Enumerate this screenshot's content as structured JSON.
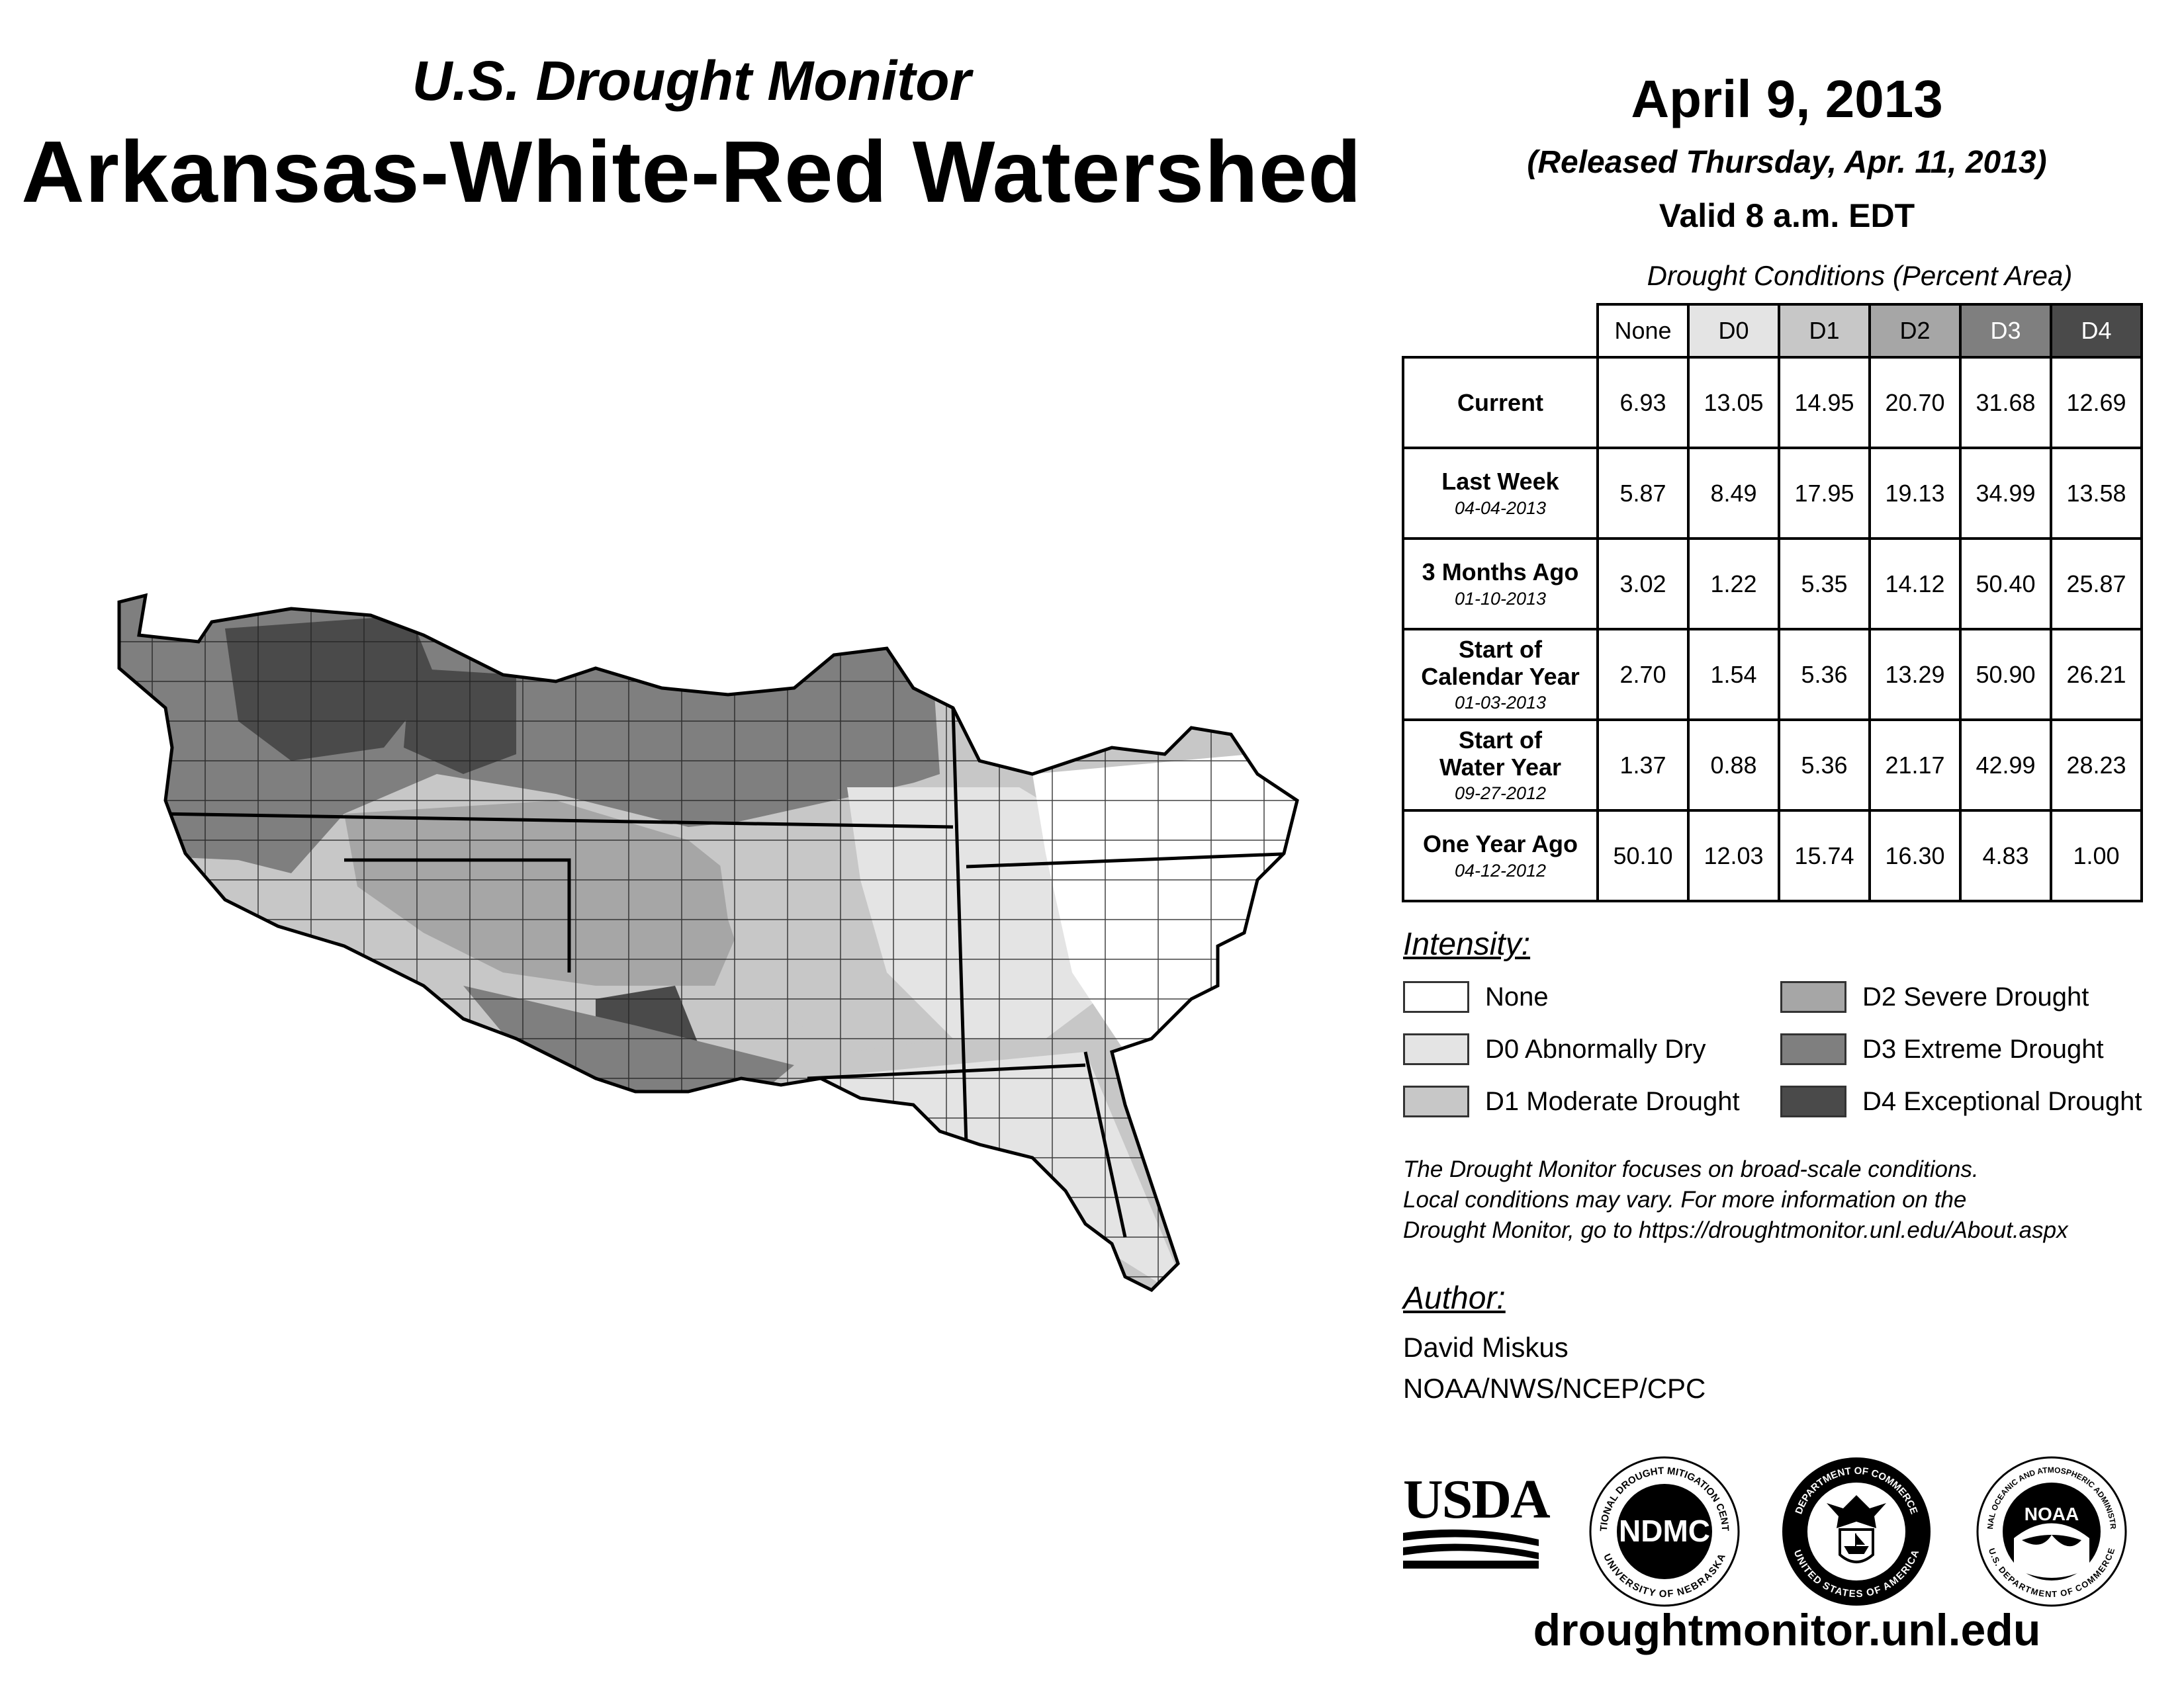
{
  "header": {
    "subtitle": "U.S. Drought Monitor",
    "title": "Arkansas-White-Red Watershed"
  },
  "date_block": {
    "date": "April 9, 2013",
    "released": "(Released Thursday, Apr. 11, 2013)",
    "valid": "Valid 8 a.m. EDT"
  },
  "table": {
    "caption": "Drought Conditions (Percent Area)",
    "columns": [
      "None",
      "D0",
      "D1",
      "D2",
      "D3",
      "D4"
    ],
    "rows": [
      {
        "label": "Current",
        "date": "",
        "values": [
          "6.93",
          "13.05",
          "14.95",
          "20.70",
          "31.68",
          "12.69"
        ]
      },
      {
        "label": "Last Week",
        "date": "04-04-2013",
        "values": [
          "5.87",
          "8.49",
          "17.95",
          "19.13",
          "34.99",
          "13.58"
        ]
      },
      {
        "label": "3 Months Ago",
        "date": "01-10-2013",
        "values": [
          "3.02",
          "1.22",
          "5.35",
          "14.12",
          "50.40",
          "25.87"
        ]
      },
      {
        "label_line1": "Start of",
        "label_line2": "Calendar Year",
        "date": "01-03-2013",
        "values": [
          "2.70",
          "1.54",
          "5.36",
          "13.29",
          "50.90",
          "26.21"
        ]
      },
      {
        "label_line1": "Start of",
        "label_line2": "Water Year",
        "date": "09-27-2012",
        "values": [
          "1.37",
          "0.88",
          "5.36",
          "21.17",
          "42.99",
          "28.23"
        ]
      },
      {
        "label": "One Year Ago",
        "date": "04-12-2012",
        "values": [
          "50.10",
          "12.03",
          "15.74",
          "16.30",
          "4.83",
          "1.00"
        ]
      }
    ]
  },
  "legend": {
    "title": "Intensity:",
    "items": [
      {
        "label": "None",
        "color": "#ffffff"
      },
      {
        "label": "D0 Abnormally Dry",
        "color": "#e4e4e4"
      },
      {
        "label": "D1 Moderate Drought",
        "color": "#c7c7c7"
      },
      {
        "label": "D2 Severe Drought",
        "color": "#a6a6a6"
      },
      {
        "label": "D3 Extreme Drought",
        "color": "#7f7f7f"
      },
      {
        "label": "D4 Exceptional Drought",
        "color": "#4a4a4a"
      }
    ]
  },
  "note": {
    "line1": "The Drought Monitor focuses on broad-scale conditions.",
    "line2": "Local conditions may vary. For more information on the",
    "line3": "Drought Monitor, go to https://droughtmonitor.unl.edu/About.aspx"
  },
  "author": {
    "title": "Author:",
    "name": "David Miskus",
    "org": "NOAA/NWS/NCEP/CPC"
  },
  "logos": {
    "usda": "USDA",
    "ndmc": "NDMC",
    "ndmc_ring_top": "NATIONAL DROUGHT MITIGATION CENTER",
    "ndmc_ring_bottom": "UNIVERSITY OF NEBRASKA",
    "doc_ring_top": "DEPARTMENT OF COMMERCE",
    "doc_ring_bottom": "UNITED STATES OF AMERICA",
    "noaa": "NOAA",
    "noaa_ring_top": "NATIONAL OCEANIC AND ATMOSPHERIC ADMINISTRATION",
    "noaa_ring_bottom": "U.S. DEPARTMENT OF COMMERCE"
  },
  "url": "droughtmonitor.unl.edu"
}
